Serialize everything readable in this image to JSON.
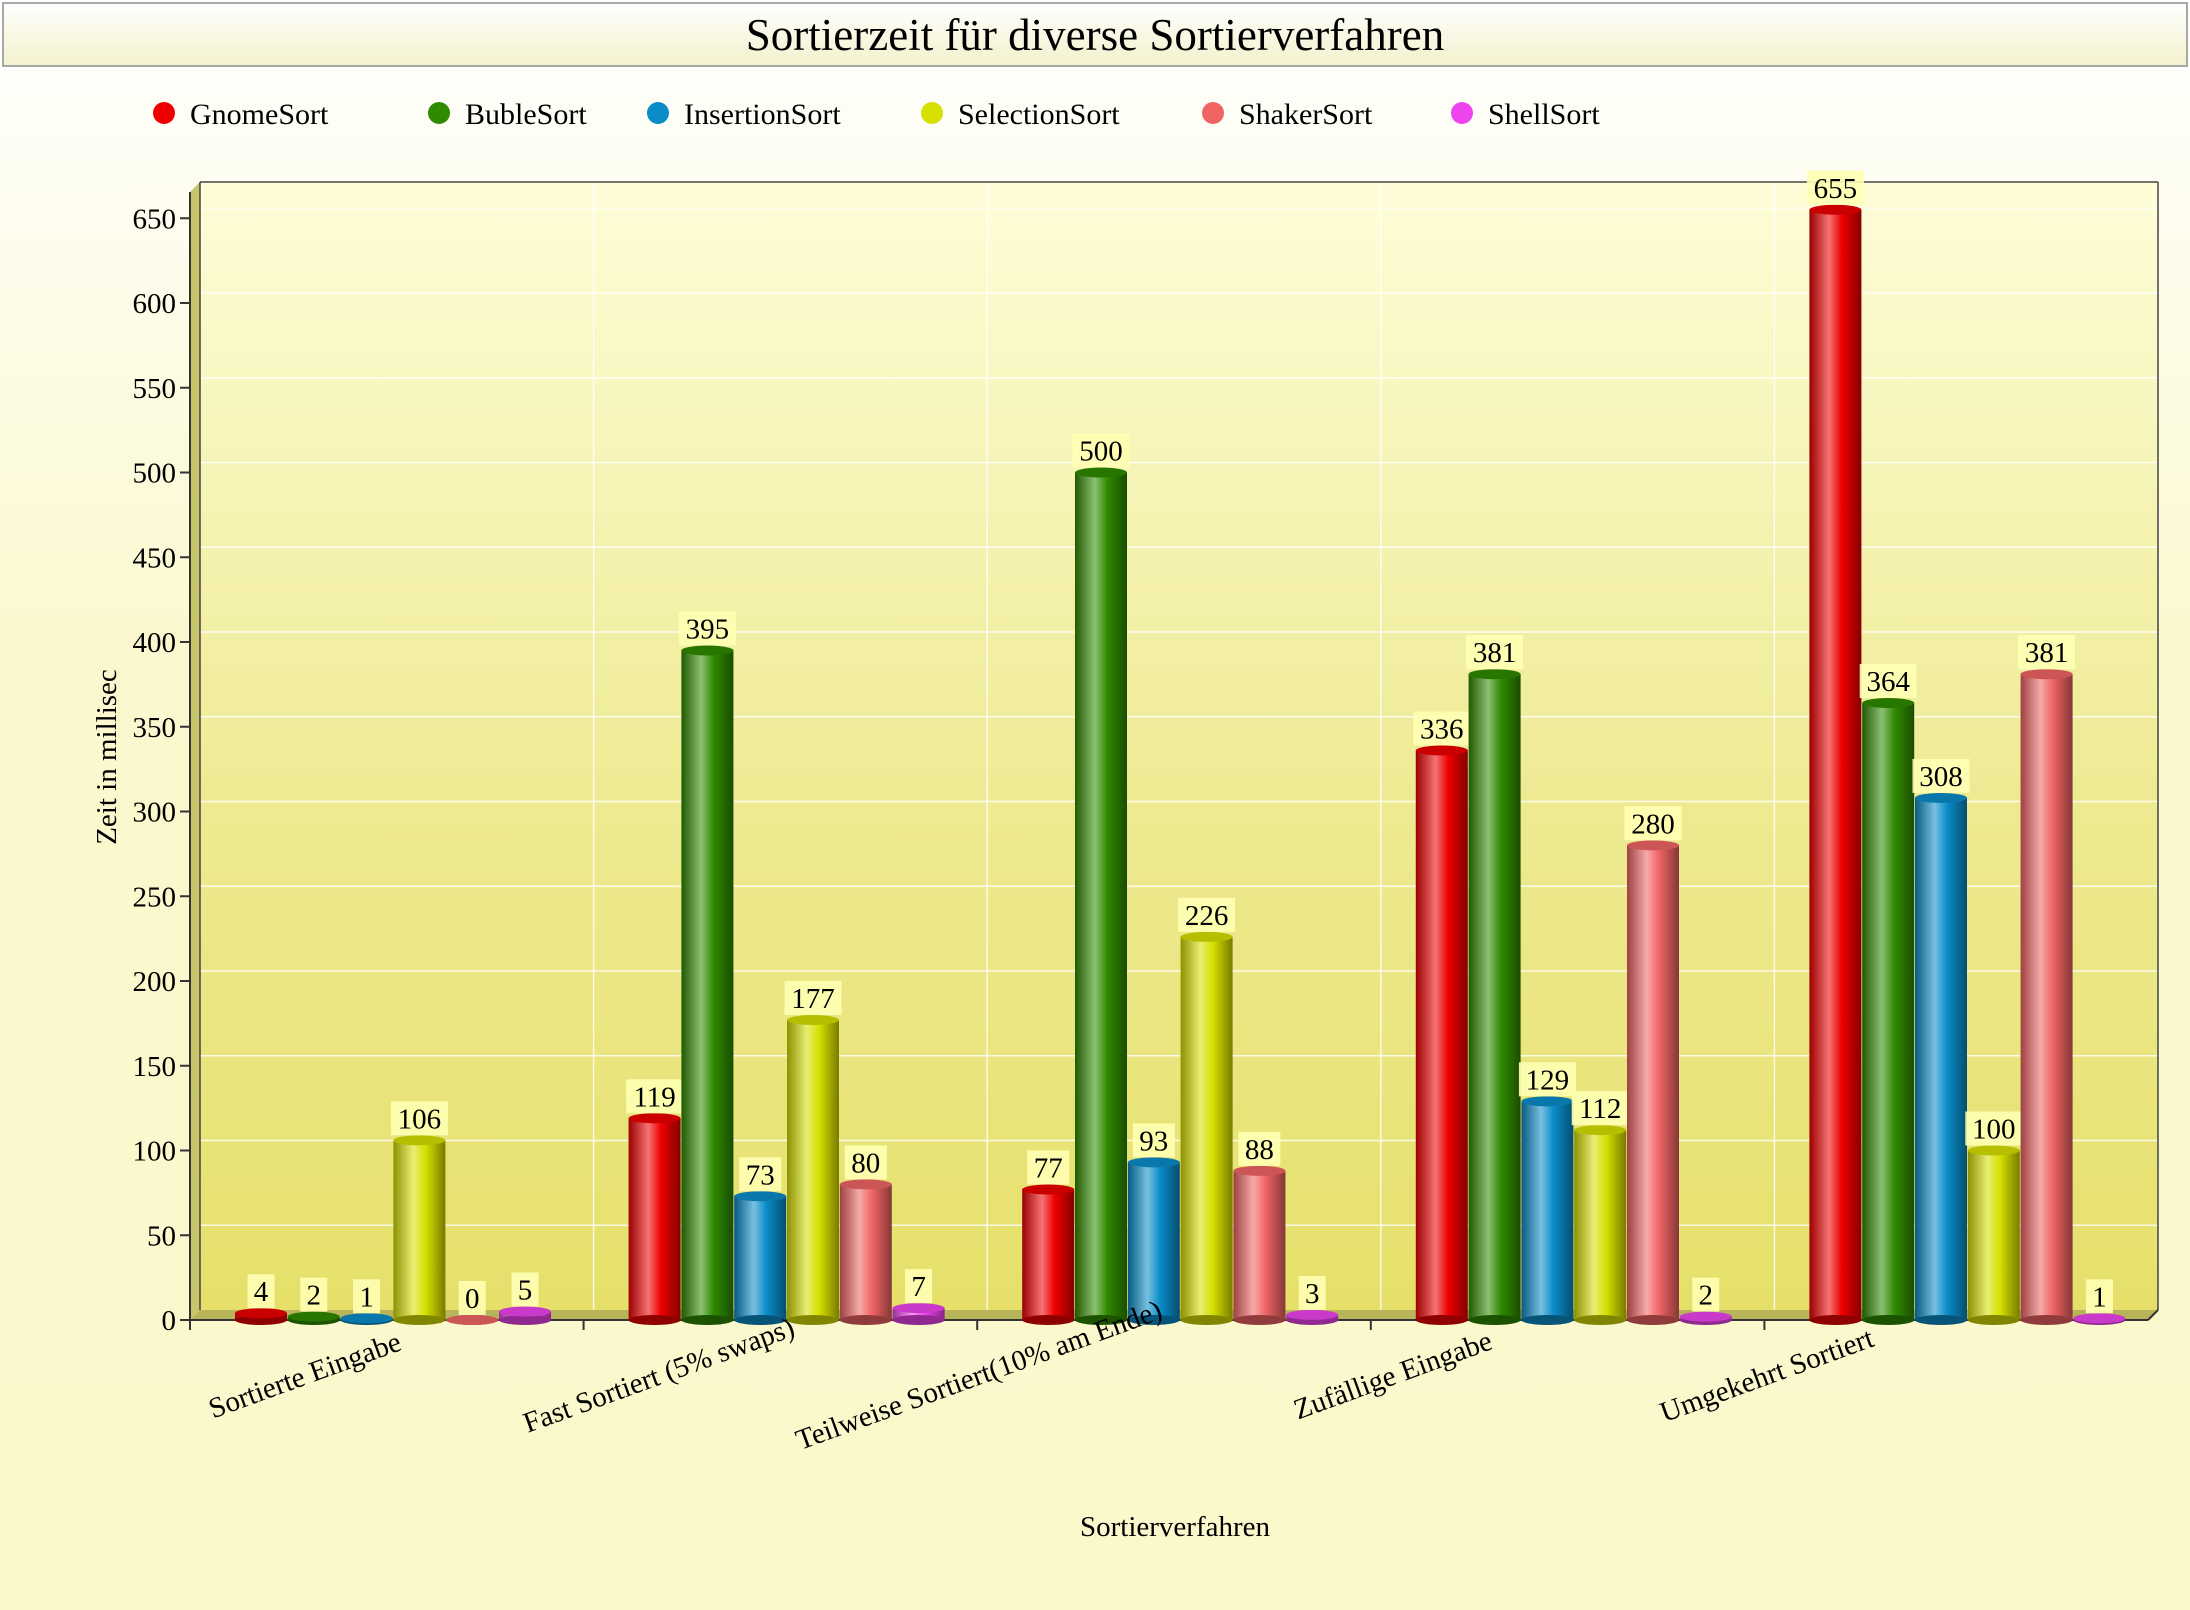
{
  "chart_data": {
    "type": "bar",
    "title": "Sortierzeit für diverse Sortierverfahren",
    "xlabel": "Sortierverfahren",
    "ylabel": "Zeit in millisec",
    "ylim": [
      0,
      665
    ],
    "yticks": [
      0,
      50,
      100,
      150,
      200,
      250,
      300,
      350,
      400,
      450,
      500,
      550,
      600,
      650
    ],
    "grid": true,
    "legend_position": "top",
    "categories": [
      "Sortierte Eingabe",
      "Fast Sortiert (5% swaps)",
      "Teilweise Sortiert(10% am Ende)",
      "Zufällige Eingabe",
      "Umgekehrt Sortiert"
    ],
    "series": [
      {
        "name": "GnomeSort",
        "color": "#ee0000",
        "values": [
          4,
          119,
          77,
          336,
          655
        ]
      },
      {
        "name": "BubleSort",
        "color": "#2f8a00",
        "values": [
          2,
          395,
          500,
          381,
          364
        ]
      },
      {
        "name": "InsertionSort",
        "color": "#0a8cc8",
        "values": [
          1,
          73,
          93,
          129,
          308
        ]
      },
      {
        "name": "SelectionSort",
        "color": "#d6e000",
        "values": [
          106,
          177,
          226,
          112,
          100
        ]
      },
      {
        "name": "ShakerSort",
        "color": "#f06464",
        "values": [
          0,
          80,
          88,
          280,
          381
        ]
      },
      {
        "name": "ShellSort",
        "color": "#ee44ee",
        "values": [
          5,
          7,
          3,
          2,
          1
        ]
      }
    ]
  }
}
